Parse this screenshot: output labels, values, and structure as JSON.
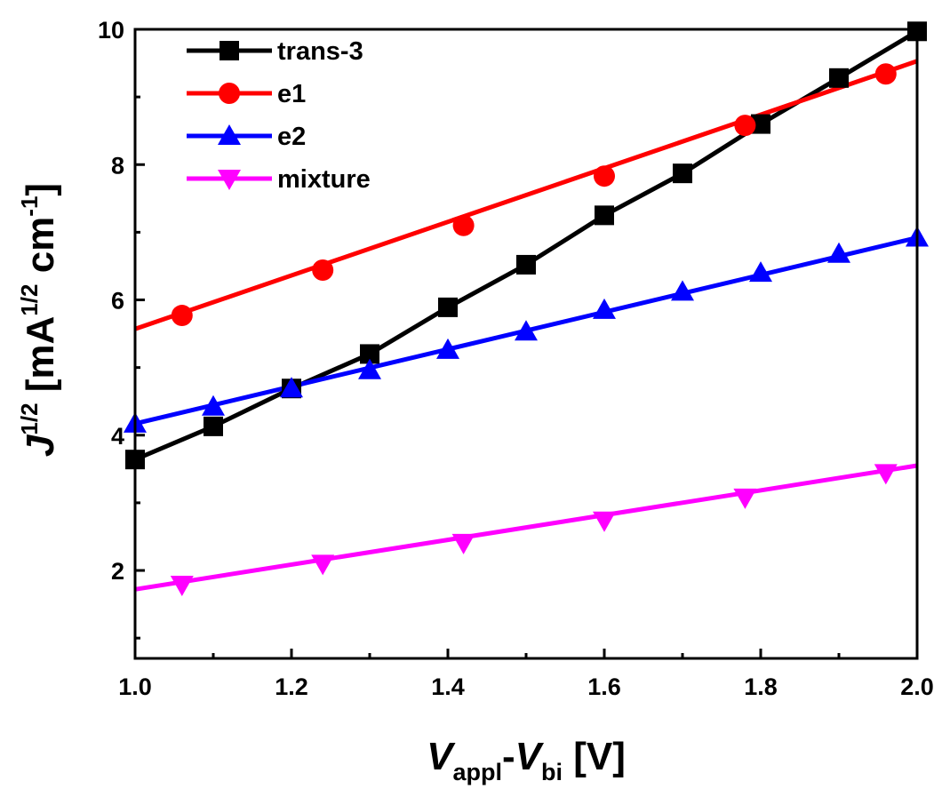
{
  "chart_data": {
    "type": "line",
    "xlim": [
      1.0,
      2.0
    ],
    "ylim": [
      0.7,
      10.0
    ],
    "x_ticks": [
      "1.0",
      "1.2",
      "1.4",
      "1.6",
      "1.8",
      "2.0"
    ],
    "y_ticks": [
      "2",
      "4",
      "6",
      "8",
      "10"
    ],
    "x_tick_values": [
      1.0,
      1.2,
      1.4,
      1.6,
      1.8,
      2.0
    ],
    "y_tick_values": [
      2,
      4,
      6,
      8,
      10
    ],
    "xlabel": {
      "v1": "V",
      "sub1": "appl",
      "dash": "-",
      "v2": "V",
      "sub2": "bi",
      "unit": " [V]"
    },
    "ylabel": {
      "j": "J",
      "sup1": "1/2",
      "open": " [mA",
      "sup2": "1/2",
      "cm": " cm",
      "sup3": "-1",
      "close": "]"
    },
    "legend_position": "top-left",
    "series": [
      {
        "name": "trans-3",
        "color": "#000000",
        "marker": "square",
        "points": [
          [
            1.0,
            3.64
          ],
          [
            1.1,
            4.13
          ],
          [
            1.2,
            4.69
          ],
          [
            1.3,
            5.2
          ],
          [
            1.4,
            5.89
          ],
          [
            1.5,
            6.52
          ],
          [
            1.6,
            7.25
          ],
          [
            1.7,
            7.87
          ],
          [
            1.8,
            8.6
          ],
          [
            1.9,
            9.28
          ],
          [
            2.0,
            9.97
          ]
        ],
        "line": [
          [
            1.0,
            3.64
          ],
          [
            1.1,
            4.13
          ],
          [
            1.2,
            4.69
          ],
          [
            1.3,
            5.2
          ],
          [
            1.4,
            5.89
          ],
          [
            1.5,
            6.52
          ],
          [
            1.6,
            7.25
          ],
          [
            1.7,
            7.87
          ],
          [
            1.8,
            8.6
          ],
          [
            1.9,
            9.28
          ],
          [
            2.0,
            9.97
          ]
        ]
      },
      {
        "name": "e1",
        "color": "#ff0000",
        "marker": "circle",
        "points": [
          [
            1.06,
            5.77
          ],
          [
            1.24,
            6.44
          ],
          [
            1.42,
            7.1
          ],
          [
            1.6,
            7.83
          ],
          [
            1.78,
            8.58
          ],
          [
            1.96,
            9.34
          ]
        ],
        "line": [
          [
            1.0,
            5.57
          ],
          [
            2.0,
            9.53
          ]
        ]
      },
      {
        "name": "e2",
        "color": "#0000ff",
        "marker": "triangle-up",
        "points": [
          [
            1.0,
            4.17
          ],
          [
            1.1,
            4.42
          ],
          [
            1.2,
            4.69
          ],
          [
            1.3,
            4.96
          ],
          [
            1.4,
            5.26
          ],
          [
            1.5,
            5.53
          ],
          [
            1.6,
            5.85
          ],
          [
            1.7,
            6.12
          ],
          [
            1.8,
            6.4
          ],
          [
            1.9,
            6.68
          ],
          [
            2.0,
            6.92
          ]
        ],
        "line": [
          [
            1.0,
            4.17
          ],
          [
            2.0,
            6.92
          ]
        ]
      },
      {
        "name": "mixture",
        "color": "#ff00ff",
        "marker": "triangle-down",
        "points": [
          [
            1.06,
            1.79
          ],
          [
            1.24,
            2.1
          ],
          [
            1.42,
            2.41
          ],
          [
            1.6,
            2.74
          ],
          [
            1.78,
            3.08
          ],
          [
            1.96,
            3.44
          ]
        ],
        "line": [
          [
            1.0,
            1.72
          ],
          [
            2.0,
            3.55
          ]
        ]
      }
    ]
  }
}
